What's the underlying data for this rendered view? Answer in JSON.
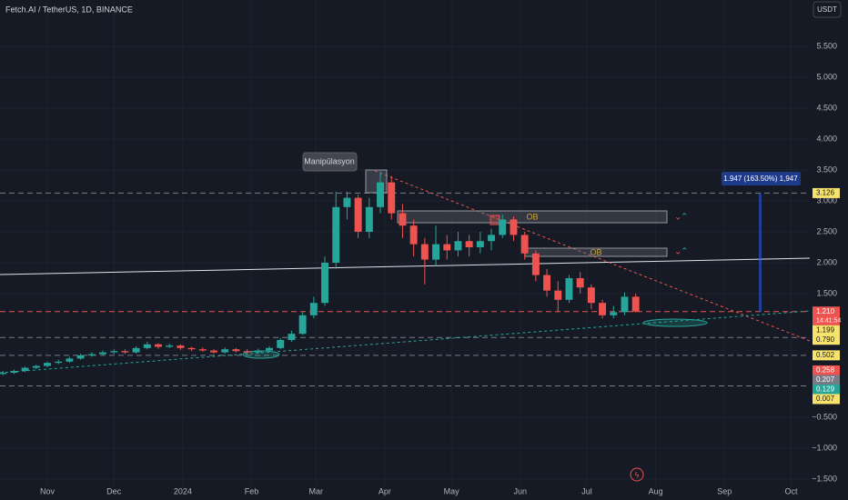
{
  "chart_data": {
    "type": "candlestick",
    "title": "Fetch.AI / TetherUS, 1D, BINANCE",
    "currency": "USDT",
    "up_color": "#26a69a",
    "down_color": "#ef5350",
    "grid": true,
    "xlim": [
      -21.3,
      343.4
    ],
    "ylim": [
      -1.6,
      6.25
    ],
    "xticks": [
      {
        "value": 0,
        "label": "Nov"
      },
      {
        "value": 30,
        "label": "Dec"
      },
      {
        "value": 61,
        "label": "2024"
      },
      {
        "value": 92,
        "label": "Feb"
      },
      {
        "value": 121,
        "label": "Mar"
      },
      {
        "value": 152,
        "label": "Apr"
      },
      {
        "value": 182,
        "label": "May"
      },
      {
        "value": 213,
        "label": "Jun"
      },
      {
        "value": 243,
        "label": "Jul"
      },
      {
        "value": 274,
        "label": "Aug"
      },
      {
        "value": 305,
        "label": "Sep"
      },
      {
        "value": 335,
        "label": "Oct"
      }
    ],
    "yticks": [
      {
        "value": 5.5,
        "label": "5.500"
      },
      {
        "value": 5,
        "label": "5.000"
      },
      {
        "value": 4.5,
        "label": "4.500"
      },
      {
        "value": 4,
        "label": "4.000"
      },
      {
        "value": 3.5,
        "label": "3.500"
      },
      {
        "value": 3,
        "label": "3.000"
      },
      {
        "value": 2.5,
        "label": "2.500"
      },
      {
        "value": 2,
        "label": "2.000"
      },
      {
        "value": 1.5,
        "label": "1.500"
      },
      {
        "value": -0.5,
        "label": "−0.500"
      },
      {
        "value": -1,
        "label": "−1.000"
      },
      {
        "value": -1.5,
        "label": "−1.500"
      }
    ],
    "x": [
      -20,
      -15,
      -10,
      -5,
      0,
      5,
      10,
      15,
      20,
      25,
      30,
      35,
      40,
      45,
      50,
      55,
      60,
      65,
      70,
      75,
      80,
      85,
      90,
      95,
      100,
      105,
      110,
      115,
      120,
      125,
      130,
      135,
      140,
      145,
      150,
      155,
      160,
      165,
      170,
      175,
      180,
      185,
      190,
      195,
      200,
      205,
      210,
      215,
      220,
      225,
      230,
      235,
      240,
      245,
      250,
      255,
      260,
      265
    ],
    "open": [
      0.2,
      0.22,
      0.25,
      0.3,
      0.33,
      0.38,
      0.4,
      0.45,
      0.5,
      0.52,
      0.55,
      0.57,
      0.55,
      0.62,
      0.68,
      0.64,
      0.66,
      0.62,
      0.6,
      0.58,
      0.55,
      0.6,
      0.57,
      0.55,
      0.58,
      0.62,
      0.75,
      0.85,
      1.15,
      1.35,
      2.0,
      2.9,
      3.05,
      2.5,
      2.9,
      3.3,
      2.8,
      2.6,
      2.3,
      2.05,
      2.3,
      2.2,
      2.35,
      2.25,
      2.35,
      2.45,
      2.7,
      2.45,
      2.15,
      1.8,
      1.55,
      1.4,
      1.75,
      1.6,
      1.35,
      1.15,
      1.2,
      1.45
    ],
    "high": [
      0.25,
      0.27,
      0.32,
      0.35,
      0.4,
      0.43,
      0.48,
      0.53,
      0.55,
      0.58,
      0.6,
      0.6,
      0.65,
      0.72,
      0.7,
      0.69,
      0.68,
      0.64,
      0.63,
      0.6,
      0.63,
      0.62,
      0.6,
      0.61,
      0.65,
      0.78,
      0.9,
      1.2,
      1.45,
      2.1,
      3.15,
      3.15,
      3.1,
      3.05,
      3.48,
      3.4,
      2.95,
      2.7,
      2.4,
      2.6,
      2.45,
      2.5,
      2.45,
      2.5,
      2.55,
      2.78,
      2.75,
      2.5,
      2.2,
      1.9,
      1.7,
      1.8,
      1.85,
      1.65,
      1.4,
      1.3,
      1.52,
      1.5
    ],
    "low": [
      0.18,
      0.2,
      0.23,
      0.28,
      0.31,
      0.36,
      0.38,
      0.43,
      0.48,
      0.5,
      0.52,
      0.52,
      0.53,
      0.6,
      0.61,
      0.62,
      0.59,
      0.57,
      0.56,
      0.53,
      0.53,
      0.55,
      0.52,
      0.53,
      0.56,
      0.6,
      0.72,
      0.83,
      1.1,
      1.3,
      1.9,
      2.7,
      2.4,
      2.4,
      2.8,
      2.7,
      2.4,
      2.1,
      1.65,
      1.95,
      2.05,
      2.1,
      2.1,
      2.15,
      2.2,
      2.4,
      2.35,
      2.05,
      1.7,
      1.45,
      1.2,
      1.35,
      1.5,
      1.25,
      1.1,
      1.1,
      1.15,
      1.19
    ],
    "close": [
      0.22,
      0.25,
      0.3,
      0.33,
      0.38,
      0.4,
      0.45,
      0.5,
      0.52,
      0.55,
      0.57,
      0.55,
      0.62,
      0.68,
      0.64,
      0.66,
      0.62,
      0.6,
      0.58,
      0.55,
      0.6,
      0.57,
      0.55,
      0.58,
      0.62,
      0.75,
      0.85,
      1.15,
      1.35,
      2.0,
      2.9,
      3.05,
      2.5,
      2.9,
      3.3,
      2.8,
      2.6,
      2.3,
      2.05,
      2.3,
      2.2,
      2.35,
      2.25,
      2.35,
      2.45,
      2.7,
      2.45,
      2.15,
      1.8,
      1.55,
      1.4,
      1.75,
      1.6,
      1.35,
      1.15,
      1.2,
      1.45,
      1.21
    ],
    "price_labels": [
      {
        "value": 3.126,
        "label": "3.126",
        "color": "#f7e36b",
        "dashed_line": true
      },
      {
        "value": 1.21,
        "label": "1.210",
        "color": "#ef5350",
        "dashed_line": true,
        "subtext": "14:41:54"
      },
      {
        "value": 1.199,
        "label": "1.199",
        "color": "#f7e36b",
        "dashed_line": false
      },
      {
        "value": 0.79,
        "label": "0.790",
        "color": "#f7e36b",
        "dashed_line": true
      },
      {
        "value": 0.502,
        "label": "0.502",
        "color": "#f7e36b",
        "dashed_line": true
      },
      {
        "value": 0.258,
        "label": "0.258",
        "color": "#ef5350",
        "dashed_line": false
      },
      {
        "value": 0.207,
        "label": "0.207",
        "color": "#787b86",
        "dashed_line": false
      },
      {
        "value": 0.129,
        "label": "0.129",
        "color": "#26a69a",
        "dashed_line": false
      },
      {
        "value": 0.007,
        "label": "0.007",
        "color": "#f7e36b",
        "dashed_line": true
      }
    ],
    "annotations": {
      "callout": "Manipülasyon",
      "measure": "1.947 (163.50%) 1,947",
      "order_block_1": "OB",
      "order_block_2": "OB"
    }
  }
}
